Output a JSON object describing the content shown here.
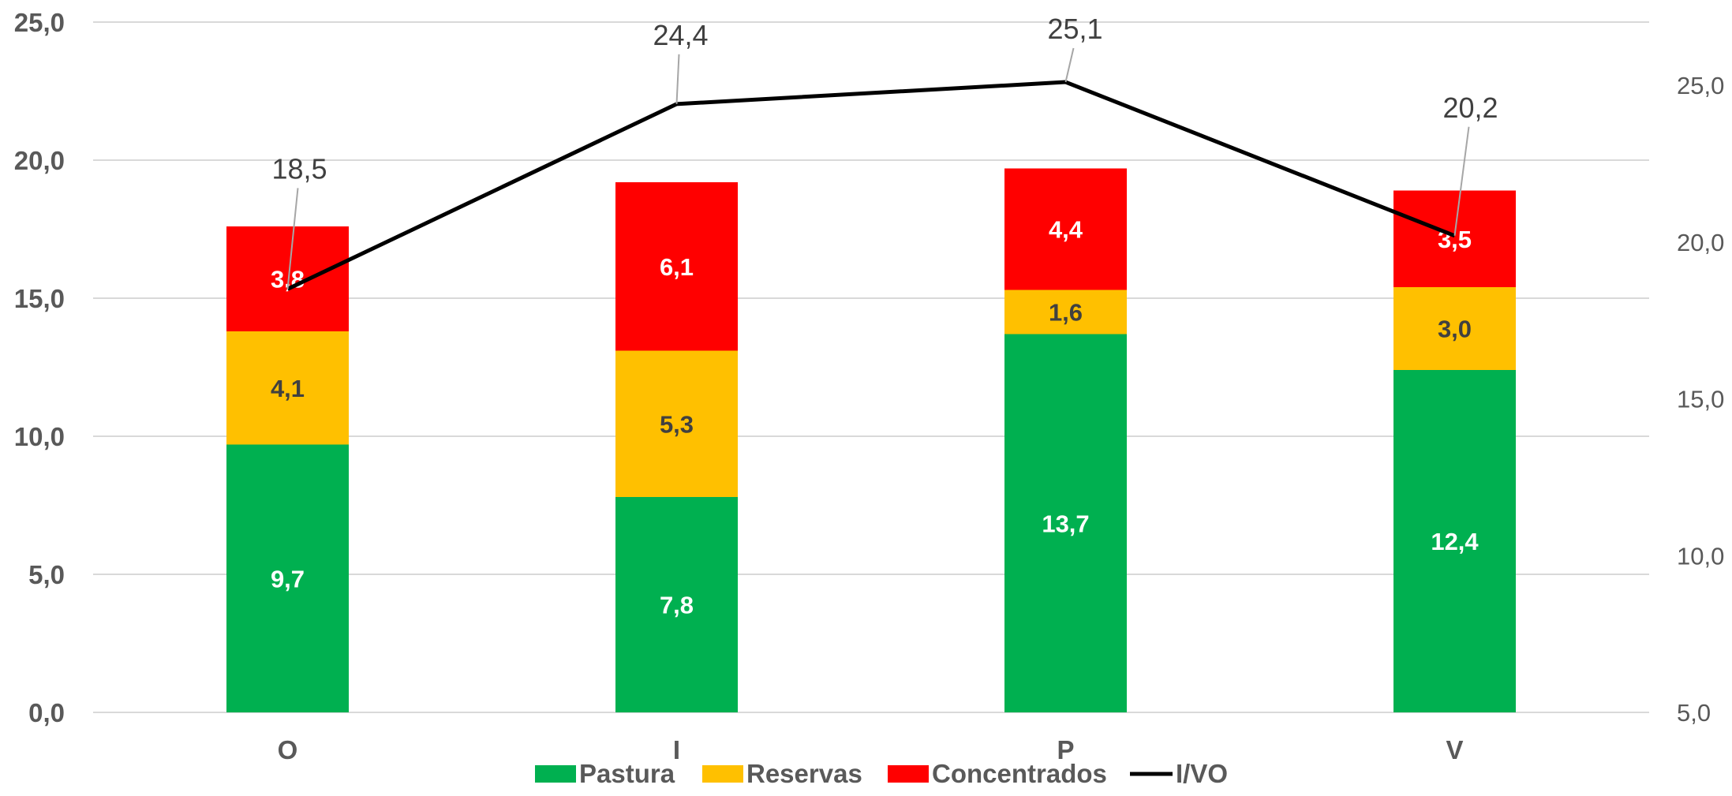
{
  "chart_data": {
    "type": "bar",
    "stacked": true,
    "categories": [
      "O",
      "I",
      "P",
      "V"
    ],
    "series": [
      {
        "name": "Pastura",
        "values": [
          9.7,
          7.8,
          13.7,
          12.4
        ],
        "color": "#00B050",
        "label_color": "#ffffff"
      },
      {
        "name": "Reservas",
        "values": [
          4.1,
          5.3,
          1.6,
          3.0
        ],
        "color": "#FFC000",
        "label_color": "#404040"
      },
      {
        "name": "Concentrados",
        "values": [
          3.8,
          6.1,
          4.4,
          3.5
        ],
        "color": "#FF0000",
        "label_color": "#ffffff"
      }
    ],
    "line_series": {
      "name": "I/VO",
      "values": [
        18.5,
        24.4,
        25.1,
        20.2
      ],
      "color": "#000000",
      "axis": "secondary"
    },
    "y_left": {
      "min": 0,
      "max": 25,
      "ticks": [
        "0,0",
        "5,0",
        "10,0",
        "15,0",
        "20,0",
        "25,0"
      ]
    },
    "y_right": {
      "min": 5,
      "max": 25,
      "ticks": [
        "5,0",
        "10,0",
        "15,0",
        "20,0",
        "25,0"
      ]
    },
    "segment_labels": [
      [
        "9,7",
        "7,8",
        "13,7",
        "12,4"
      ],
      [
        "4,1",
        "5,3",
        "1,6",
        "3,0"
      ],
      [
        "3,8",
        "6,1",
        "4,4",
        "3,5"
      ]
    ],
    "line_labels": [
      "18,5",
      "24,4",
      "25,1",
      "20,2"
    ],
    "grid": true,
    "legend_position": "bottom"
  }
}
